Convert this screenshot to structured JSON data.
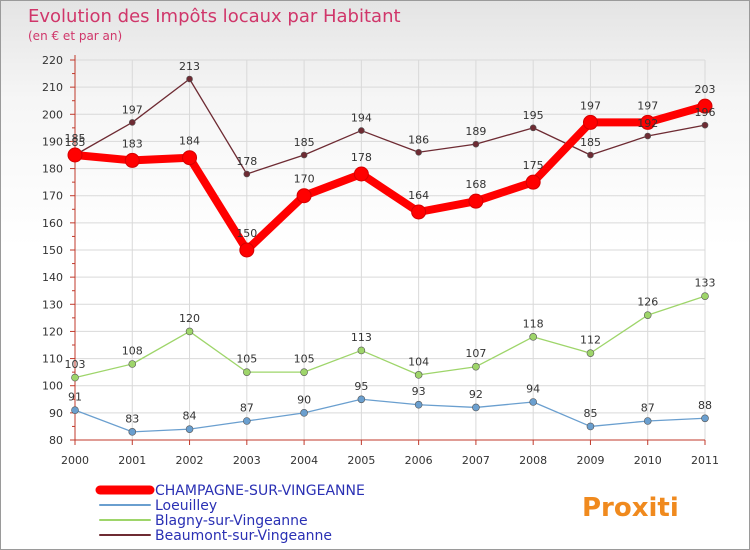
{
  "chart_data": {
    "type": "line",
    "title": "Evolution des Impôts locaux par Habitant",
    "subtitle": "(en € et par an)",
    "xlabel": "",
    "ylabel": "",
    "ylim": [
      80,
      220
    ],
    "ytick_step": 10,
    "categories": [
      "2000",
      "2001",
      "2002",
      "2003",
      "2004",
      "2005",
      "2006",
      "2007",
      "2008",
      "2009",
      "2010",
      "2011"
    ],
    "series": [
      {
        "name": "Beaumont-sur-Vingeanne",
        "color": "#6e2b33",
        "values": [
          185,
          197,
          213,
          178,
          185,
          194,
          186,
          189,
          195,
          185,
          192,
          196
        ]
      },
      {
        "name": "Blagny-sur-Vingeanne",
        "color": "#9ed56a",
        "values": [
          103,
          108,
          120,
          105,
          105,
          113,
          104,
          107,
          118,
          112,
          126,
          133
        ]
      },
      {
        "name": "Loeuilley",
        "color": "#6a9fcf",
        "values": [
          91,
          83,
          84,
          87,
          90,
          95,
          93,
          92,
          94,
          85,
          87,
          88
        ]
      },
      {
        "name": "CHAMPAGNE-SUR-VINGEANNE",
        "color": "#ff0000",
        "values": [
          185,
          183,
          184,
          150,
          170,
          178,
          164,
          168,
          175,
          197,
          197,
          203
        ]
      }
    ],
    "legend": {
      "position": "bottom-left",
      "order": [
        "CHAMPAGNE-SUR-VINGEANNE",
        "Loeuilley",
        "Blagny-sur-Vingeanne",
        "Beaumont-sur-Vingeanne"
      ]
    }
  },
  "brand": {
    "logo_text": "Proxiti"
  }
}
